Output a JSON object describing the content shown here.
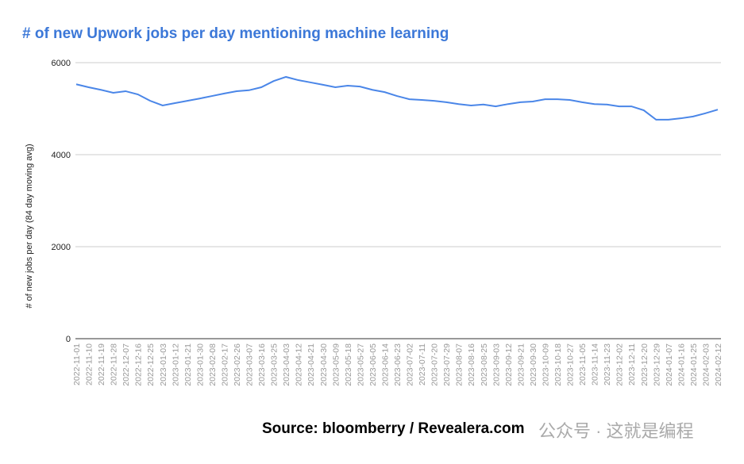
{
  "chart_data": {
    "type": "line",
    "title": "# of new Upwork jobs per day mentioning machine learning",
    "y_label": "# of new jobs per day (84 day moving avg)",
    "source": "Source: bloomberry / Revealera.com",
    "watermark": "公众号 · 这就是编程",
    "categories": [
      "2022-11-01",
      "2022-11-10",
      "2022-11-19",
      "2022-11-28",
      "2022-12-07",
      "2022-12-16",
      "2022-12-25",
      "2023-01-03",
      "2023-01-12",
      "2023-01-21",
      "2023-01-30",
      "2023-02-08",
      "2023-02-17",
      "2023-02-26",
      "2023-03-07",
      "2023-03-16",
      "2023-03-25",
      "2023-04-03",
      "2023-04-12",
      "2023-04-21",
      "2023-04-30",
      "2023-05-09",
      "2023-05-18",
      "2023-05-27",
      "2023-06-05",
      "2023-06-14",
      "2023-06-23",
      "2023-07-02",
      "2023-07-11",
      "2023-07-20",
      "2023-07-29",
      "2023-08-07",
      "2023-08-16",
      "2023-08-25",
      "2023-09-03",
      "2023-09-12",
      "2023-09-21",
      "2023-09-30",
      "2023-10-09",
      "2023-10-18",
      "2023-10-27",
      "2023-11-05",
      "2023-11-14",
      "2023-11-23",
      "2023-12-02",
      "2023-12-11",
      "2023-12-20",
      "2023-12-29",
      "2024-01-07",
      "2024-01-16",
      "2024-01-25",
      "2024-02-03",
      "2024-02-12"
    ],
    "series": [
      {
        "name": "# of new jobs per day (84 day moving avg)",
        "color": "#4a86e8",
        "values": [
          5530,
          5465,
          5410,
          5345,
          5380,
          5310,
          5170,
          5070,
          5120,
          5170,
          5220,
          5275,
          5330,
          5380,
          5400,
          5465,
          5600,
          5690,
          5620,
          5570,
          5520,
          5465,
          5500,
          5480,
          5410,
          5360,
          5275,
          5205,
          5190,
          5170,
          5140,
          5100,
          5070,
          5090,
          5050,
          5100,
          5140,
          5155,
          5205,
          5205,
          5190,
          5140,
          5100,
          5090,
          5050,
          5050,
          4965,
          4760,
          4760,
          4790,
          4830,
          4900,
          4980
        ]
      }
    ],
    "ylim": [
      0,
      6000
    ],
    "yticks": [
      0,
      2000,
      4000,
      6000
    ],
    "grid": true
  }
}
